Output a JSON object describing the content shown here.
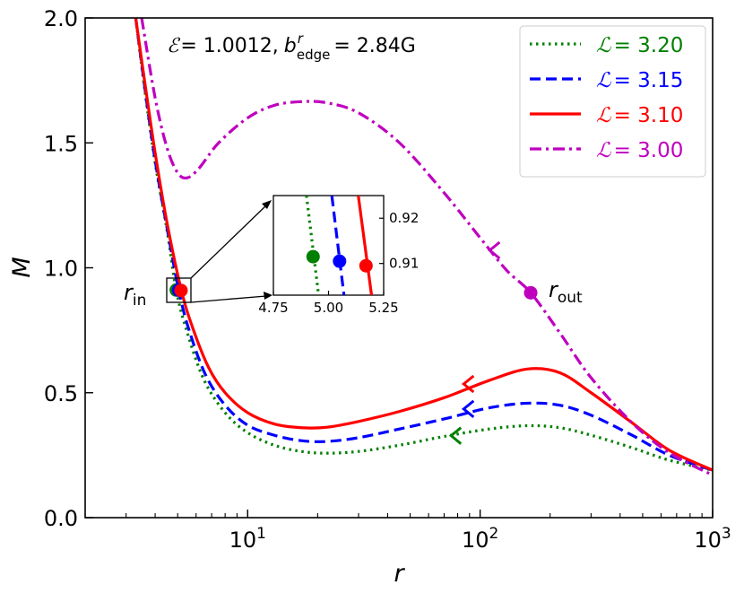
{
  "chart_data": {
    "type": "line",
    "xscale": "log",
    "xlim": [
      2.0,
      1000
    ],
    "ylim": [
      0.0,
      2.0
    ],
    "xlabel": "r",
    "ylabel": "M",
    "xticks": [
      {
        "value": 10,
        "base": "10",
        "exp": "1"
      },
      {
        "value": 100,
        "base": "10",
        "exp": "2"
      },
      {
        "value": 1000,
        "base": "10",
        "exp": "3"
      }
    ],
    "yticks": [
      "0.0",
      "0.5",
      "1.0",
      "1.5",
      "2.0"
    ],
    "annotation": {
      "energy_symbol": "ℰ",
      "energy_value": "= 1.0012,",
      "b_symbol": "b",
      "b_sup": "r",
      "b_sub": "edge",
      "b_value": "= 2.84G"
    },
    "legend": {
      "position": "top-right",
      "symbol": "ℒ",
      "entries": [
        {
          "value": "= 3.20",
          "color": "#008000",
          "style": "dotted"
        },
        {
          "value": "= 3.15",
          "color": "#0000ff",
          "style": "dashed"
        },
        {
          "value": "= 3.10",
          "color": "#ff0000",
          "style": "solid"
        },
        {
          "value": "= 3.00",
          "color": "#bf00bf",
          "style": "dashdot"
        }
      ]
    },
    "series": [
      {
        "name": "L = 3.20",
        "color": "#008000",
        "style": "dotted",
        "points": [
          [
            3.3,
            2.0
          ],
          [
            3.6,
            1.72
          ],
          [
            4.0,
            1.42
          ],
          [
            4.5,
            1.15
          ],
          [
            4.93,
            0.91
          ],
          [
            5.5,
            0.74
          ],
          [
            6.5,
            0.55
          ],
          [
            8,
            0.42
          ],
          [
            10,
            0.34
          ],
          [
            13,
            0.29
          ],
          [
            17,
            0.265
          ],
          [
            22,
            0.258
          ],
          [
            30,
            0.265
          ],
          [
            45,
            0.29
          ],
          [
            70,
            0.325
          ],
          [
            110,
            0.355
          ],
          [
            160,
            0.368
          ],
          [
            220,
            0.36
          ],
          [
            300,
            0.33
          ],
          [
            450,
            0.28
          ],
          [
            650,
            0.23
          ],
          [
            1000,
            0.19
          ]
        ]
      },
      {
        "name": "L = 3.15",
        "color": "#0000ff",
        "style": "dashed",
        "points": [
          [
            3.3,
            2.0
          ],
          [
            3.6,
            1.73
          ],
          [
            4.0,
            1.43
          ],
          [
            4.5,
            1.16
          ],
          [
            5.05,
            0.911
          ],
          [
            5.6,
            0.75
          ],
          [
            6.6,
            0.57
          ],
          [
            8,
            0.45
          ],
          [
            10,
            0.37
          ],
          [
            13,
            0.33
          ],
          [
            17,
            0.308
          ],
          [
            22,
            0.305
          ],
          [
            30,
            0.32
          ],
          [
            45,
            0.355
          ],
          [
            70,
            0.395
          ],
          [
            110,
            0.44
          ],
          [
            160,
            0.458
          ],
          [
            220,
            0.45
          ],
          [
            300,
            0.41
          ],
          [
            450,
            0.33
          ],
          [
            650,
            0.25
          ],
          [
            1000,
            0.19
          ]
        ]
      },
      {
        "name": "L = 3.10",
        "color": "#ff0000",
        "style": "solid",
        "points": [
          [
            3.3,
            2.0
          ],
          [
            3.6,
            1.75
          ],
          [
            4.0,
            1.46
          ],
          [
            4.5,
            1.18
          ],
          [
            5.17,
            0.915
          ],
          [
            5.8,
            0.76
          ],
          [
            6.8,
            0.6
          ],
          [
            8,
            0.5
          ],
          [
            10,
            0.42
          ],
          [
            13,
            0.375
          ],
          [
            17,
            0.36
          ],
          [
            22,
            0.362
          ],
          [
            30,
            0.385
          ],
          [
            45,
            0.425
          ],
          [
            70,
            0.48
          ],
          [
            110,
            0.55
          ],
          [
            160,
            0.595
          ],
          [
            220,
            0.58
          ],
          [
            300,
            0.5
          ],
          [
            450,
            0.38
          ],
          [
            650,
            0.27
          ],
          [
            1000,
            0.19
          ]
        ]
      },
      {
        "name": "L = 3.00",
        "color": "#bf00bf",
        "style": "dashdot",
        "points": [
          [
            3.5,
            2.0
          ],
          [
            4.0,
            1.68
          ],
          [
            4.5,
            1.48
          ],
          [
            5.0,
            1.38
          ],
          [
            5.5,
            1.36
          ],
          [
            6.2,
            1.4
          ],
          [
            7.5,
            1.5
          ],
          [
            10,
            1.6
          ],
          [
            13,
            1.65
          ],
          [
            17,
            1.665
          ],
          [
            22,
            1.66
          ],
          [
            30,
            1.62
          ],
          [
            45,
            1.5
          ],
          [
            70,
            1.3
          ],
          [
            100,
            1.12
          ],
          [
            130,
            0.99
          ],
          [
            165,
            0.9
          ],
          [
            220,
            0.74
          ],
          [
            300,
            0.56
          ],
          [
            450,
            0.38
          ],
          [
            650,
            0.26
          ],
          [
            1000,
            0.17
          ]
        ]
      }
    ],
    "markers": [
      {
        "name": "rin-green-point",
        "color": "#008000",
        "x": 4.93,
        "y": 0.911
      },
      {
        "name": "rin-blue-point",
        "color": "#0000ff",
        "x": 5.05,
        "y": 0.9105
      },
      {
        "name": "rin-red-point",
        "color": "#ff0000",
        "x": 5.17,
        "y": 0.9095
      },
      {
        "name": "rout-magenta-point",
        "color": "#bf00bf",
        "x": 165,
        "y": 0.9
      }
    ],
    "arrows": [
      {
        "name": "magenta-flow-arrow",
        "color": "#bf00bf",
        "x": 110,
        "y": 1.07
      },
      {
        "name": "red-flow-arrow",
        "color": "#ff0000",
        "x": 85,
        "y": 0.535
      },
      {
        "name": "blue-flow-arrow",
        "color": "#0000ff",
        "x": 85,
        "y": 0.435
      },
      {
        "name": "green-flow-arrow",
        "color": "#008000",
        "x": 75,
        "y": 0.328
      }
    ],
    "labels": {
      "rin": {
        "base": "r",
        "sub": "in"
      },
      "rout": {
        "base": "r",
        "sub": "out"
      }
    },
    "inset": {
      "xlim": [
        4.75,
        5.25
      ],
      "ylim": [
        0.903,
        0.925
      ],
      "xticks": [
        "4.75",
        "5.00",
        "5.25"
      ],
      "yticks": [
        "0.91",
        "0.92"
      ],
      "lines": [
        {
          "color": "#008000",
          "style": "dotted",
          "x0": 4.9,
          "y0": 0.925,
          "x1": 4.955,
          "y1": 0.903
        },
        {
          "color": "#0000ff",
          "style": "dashed",
          "x0": 5.015,
          "y0": 0.925,
          "x1": 5.07,
          "y1": 0.903
        },
        {
          "color": "#ff0000",
          "style": "solid",
          "x0": 5.135,
          "y0": 0.925,
          "x1": 5.195,
          "y1": 0.903
        }
      ],
      "points": [
        {
          "color": "#008000",
          "x": 4.93,
          "y": 0.9115
        },
        {
          "color": "#0000ff",
          "x": 5.05,
          "y": 0.9105
        },
        {
          "color": "#ff0000",
          "x": 5.17,
          "y": 0.9095
        }
      ]
    }
  }
}
